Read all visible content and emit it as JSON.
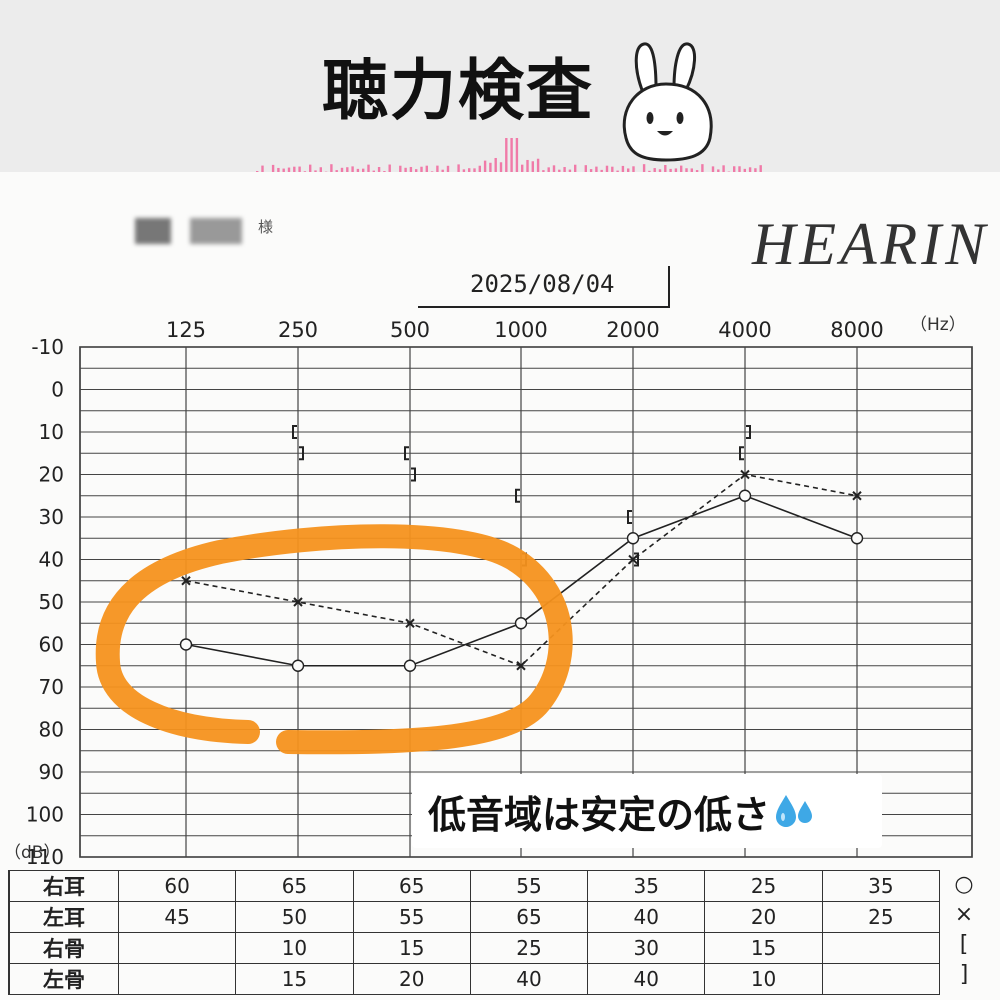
{
  "header": {
    "title": "聴力検査",
    "accent_color": "#f07aa8"
  },
  "paper": {
    "heading": "HEARIN",
    "name_fragment": "様",
    "date": "2025/08/04"
  },
  "chart_data": {
    "type": "line",
    "x": [
      "125",
      "250",
      "500",
      "1000",
      "2000",
      "4000",
      "8000"
    ],
    "x_unit": "（Hz）",
    "y_unit": "（dB）",
    "yticks": [
      "-10",
      "0",
      "10",
      "20",
      "30",
      "40",
      "50",
      "60",
      "70",
      "80",
      "90",
      "100",
      "110"
    ],
    "ylim": [
      -10,
      110
    ],
    "y_inverted": true,
    "grid": true,
    "series": [
      {
        "name": "右耳",
        "values": [
          60,
          65,
          65,
          55,
          35,
          25,
          35
        ],
        "marker": "○",
        "line": "solid"
      },
      {
        "name": "左耳",
        "values": [
          45,
          50,
          55,
          65,
          40,
          20,
          25
        ],
        "marker": "×",
        "line": "dashed"
      },
      {
        "name": "右骨",
        "values": [
          null,
          10,
          15,
          25,
          30,
          15,
          null
        ],
        "marker": "[",
        "line": "none"
      },
      {
        "name": "左骨",
        "values": [
          null,
          15,
          20,
          40,
          40,
          10,
          null
        ],
        "marker": "]",
        "line": "none"
      }
    ],
    "highlight_color": "#f5921e",
    "annotation": "低音域は安定の低さ"
  },
  "table": {
    "rows": [
      {
        "label": "右耳",
        "values": [
          "60",
          "65",
          "65",
          "55",
          "35",
          "25",
          "35"
        ],
        "symbol": "○"
      },
      {
        "label": "左耳",
        "values": [
          "45",
          "50",
          "55",
          "65",
          "40",
          "20",
          "25"
        ],
        "symbol": "×"
      },
      {
        "label": "右骨",
        "values": [
          "",
          "10",
          "15",
          "25",
          "30",
          "15",
          ""
        ],
        "symbol": "["
      },
      {
        "label": "左骨",
        "values": [
          "",
          "15",
          "20",
          "40",
          "40",
          "10",
          ""
        ],
        "symbol": "]"
      }
    ]
  },
  "icons": {
    "bunny": "bunny-sticker-icon",
    "drops": "sweat-drops-icon"
  }
}
